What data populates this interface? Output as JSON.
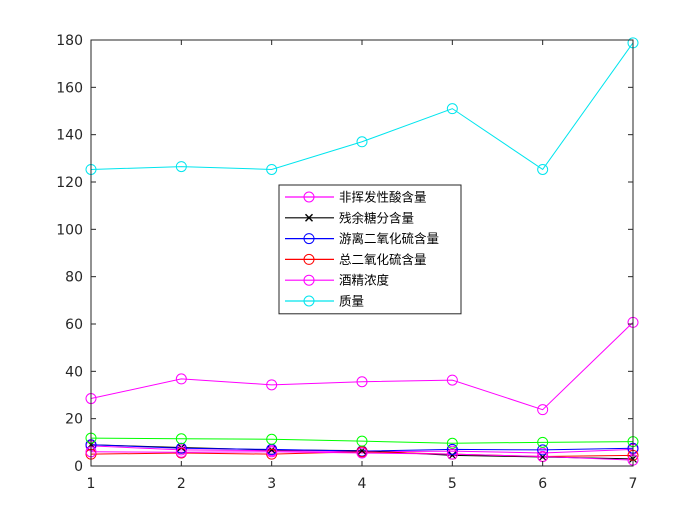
{
  "chart_data": {
    "type": "line",
    "x": [
      1,
      2,
      3,
      4,
      5,
      6,
      7
    ],
    "xlim": [
      1,
      7
    ],
    "ylim": [
      0,
      180
    ],
    "xticks": [
      1,
      2,
      3,
      4,
      5,
      6,
      7
    ],
    "yticks": [
      0,
      20,
      40,
      60,
      80,
      100,
      120,
      140,
      160,
      180
    ],
    "grid": false,
    "legend_position": "center",
    "series": [
      {
        "name": "非挥发性酸含量",
        "color": "#ff00ff",
        "marker": "circle",
        "values": [
          8.5,
          6.8,
          6.5,
          6.0,
          6.3,
          5.5,
          7.0
        ]
      },
      {
        "name": "残余糖分含量",
        "color": "#000000",
        "marker": "x",
        "values": [
          9.0,
          7.8,
          6.8,
          6.5,
          4.5,
          3.8,
          3.0
        ]
      },
      {
        "name": "游离二氧化硫含量",
        "color": "#0000ff",
        "marker": "circle",
        "values": [
          9.0,
          7.5,
          7.0,
          6.3,
          7.0,
          6.8,
          7.5
        ]
      },
      {
        "name": "总二氧化硫含量",
        "color": "#ff0000",
        "marker": "circle",
        "values": [
          5.0,
          5.5,
          5.0,
          6.0,
          5.0,
          4.0,
          4.5
        ]
      },
      {
        "name": "酒精浓度",
        "color": "#ff00ff",
        "marker": "circle",
        "values": [
          28.5,
          36.8,
          34.3,
          35.6,
          36.3,
          23.8,
          60.7
        ]
      },
      {
        "name": "质量",
        "color": "#00e5ee",
        "marker": "circle",
        "values": [
          125.3,
          126.5,
          125.3,
          137.0,
          151.0,
          125.3,
          178.8
        ]
      },
      {
        "name": "",
        "color": "#00ff00",
        "marker": "circle",
        "values": [
          11.8,
          11.5,
          11.3,
          10.5,
          9.6,
          10.0,
          10.3
        ]
      },
      {
        "name": "",
        "color": "#ff00ff",
        "marker": "circle",
        "values": [
          6.0,
          5.8,
          6.0,
          5.5,
          5.0,
          4.0,
          2.5
        ]
      }
    ]
  }
}
